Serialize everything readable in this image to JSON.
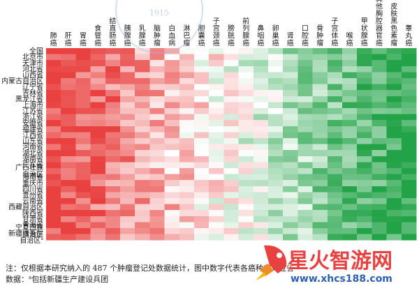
{
  "chart_data": {
    "type": "heatmap",
    "columns": [
      "肺癌",
      "肝癌",
      "胃癌",
      "食管癌",
      "结直肠癌",
      "胰腺癌",
      "乳腺癌",
      "脑肿瘤",
      "白血病",
      "淋巴瘤",
      "胆囊癌",
      "子宫颈癌",
      "膀胱癌",
      "前列腺癌",
      "鼻咽癌",
      "卵巢癌",
      "肾癌",
      "口腔癌",
      "骨肿瘤",
      "子宫体癌",
      "喉癌",
      "甲状腺癌",
      "其他胸腔器官癌",
      "皮肤黑色素瘤",
      "睾丸癌"
    ],
    "rows": [
      "全国",
      "北京市",
      "天津市",
      "河北省",
      "山西省",
      "内蒙古自治区",
      "辽宁省",
      "吉林省",
      "黑龙江省",
      "上海市",
      "江苏省",
      "浙江省",
      "安徽省",
      "福建省",
      "江西省",
      "山东省",
      "河南省",
      "湖北省",
      "湖南省",
      "广东省",
      "广西壮族自治区",
      "海南省",
      "重庆市",
      "四川省",
      "贵州省",
      "云南省",
      "西藏自治区",
      "陕西省",
      "甘肃省",
      "青海省",
      "宁夏回族自治区",
      "新疆维吾尔自治区"
    ],
    "row_markers": {
      "新疆维吾尔自治区": "a"
    },
    "color_scale": {
      "low_rank": "#e8413f",
      "mid_rank": "#ffffff",
      "high_rank": "#23a348"
    }
  },
  "footer": {
    "note": "注：仅根据本研究纳入的 487 个肿瘤登记处数据统计，图中数字代表各癌种在对应省",
    "source_prefix": "数据：",
    "source_marker": "a",
    "source_text": "包括新疆生产建设兵团"
  },
  "watermark": {
    "site_name": "星火智游网",
    "site_url": "www.xhcs188.com",
    "seal_year": "1915"
  }
}
